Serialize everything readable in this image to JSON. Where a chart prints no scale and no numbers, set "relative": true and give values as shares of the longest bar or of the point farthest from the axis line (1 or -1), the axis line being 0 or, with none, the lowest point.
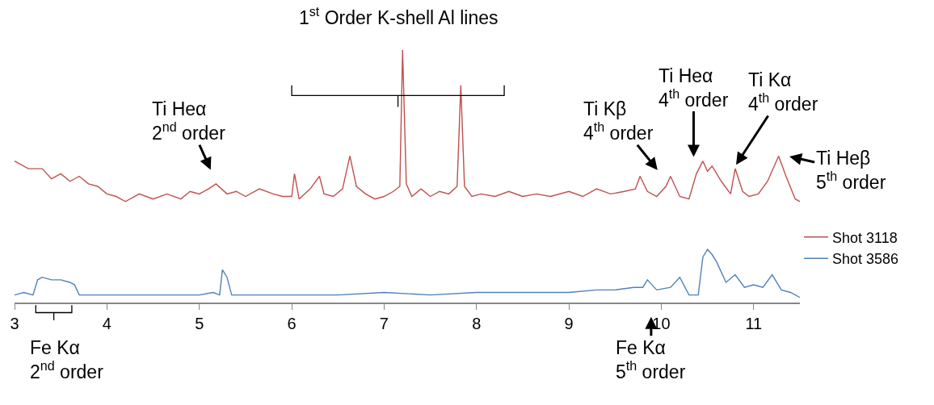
{
  "chart_data": {
    "type": "line",
    "relative": true,
    "legend": "right",
    "grid": false,
    "marker": "none",
    "line_style": "solid",
    "xlim": [
      3,
      11.5
    ],
    "xticks": [
      3,
      4,
      5,
      6,
      7,
      8,
      9,
      10,
      11
    ],
    "series": [
      {
        "name": "Shot 3118",
        "color": "#c0504d",
        "x": [
          3.0,
          3.15,
          3.3,
          3.4,
          3.5,
          3.6,
          3.7,
          3.8,
          3.9,
          4.0,
          4.1,
          4.2,
          4.35,
          4.5,
          4.65,
          4.8,
          4.9,
          5.0,
          5.1,
          5.18,
          5.3,
          5.4,
          5.5,
          5.65,
          5.8,
          5.9,
          6.0,
          6.03,
          6.08,
          6.2,
          6.3,
          6.35,
          6.45,
          6.55,
          6.63,
          6.7,
          6.8,
          6.9,
          7.0,
          7.1,
          7.17,
          7.2,
          7.24,
          7.3,
          7.4,
          7.5,
          7.6,
          7.7,
          7.79,
          7.83,
          7.87,
          7.95,
          8.05,
          8.2,
          8.35,
          8.5,
          8.65,
          8.8,
          9.0,
          9.15,
          9.3,
          9.45,
          9.6,
          9.72,
          9.77,
          9.85,
          9.95,
          10.05,
          10.1,
          10.2,
          10.3,
          10.38,
          10.45,
          10.5,
          10.55,
          10.65,
          10.75,
          10.8,
          10.88,
          10.95,
          11.05,
          11.15,
          11.27,
          11.35,
          11.45,
          11.5
        ],
        "values": [
          0.56,
          0.53,
          0.53,
          0.49,
          0.51,
          0.48,
          0.5,
          0.47,
          0.46,
          0.43,
          0.42,
          0.4,
          0.43,
          0.41,
          0.43,
          0.41,
          0.44,
          0.43,
          0.45,
          0.47,
          0.43,
          0.44,
          0.42,
          0.45,
          0.43,
          0.42,
          0.42,
          0.51,
          0.41,
          0.45,
          0.5,
          0.43,
          0.42,
          0.45,
          0.58,
          0.46,
          0.43,
          0.41,
          0.42,
          0.44,
          0.46,
          1.0,
          0.47,
          0.42,
          0.45,
          0.42,
          0.44,
          0.43,
          0.46,
          0.86,
          0.46,
          0.42,
          0.43,
          0.42,
          0.44,
          0.42,
          0.43,
          0.42,
          0.44,
          0.42,
          0.45,
          0.43,
          0.44,
          0.45,
          0.5,
          0.44,
          0.42,
          0.46,
          0.5,
          0.42,
          0.41,
          0.51,
          0.56,
          0.52,
          0.54,
          0.48,
          0.43,
          0.53,
          0.44,
          0.42,
          0.43,
          0.48,
          0.58,
          0.5,
          0.41,
          0.4
        ]
      },
      {
        "name": "Shot 3586",
        "color": "#4f81bd",
        "x": [
          3.0,
          3.1,
          3.2,
          3.25,
          3.3,
          3.4,
          3.5,
          3.6,
          3.65,
          3.7,
          3.85,
          4.0,
          4.25,
          4.5,
          4.75,
          5.0,
          5.15,
          5.22,
          5.25,
          5.3,
          5.35,
          5.5,
          5.75,
          6.0,
          6.5,
          7.0,
          7.5,
          8.0,
          8.5,
          9.0,
          9.3,
          9.5,
          9.7,
          9.8,
          9.85,
          9.95,
          10.1,
          10.2,
          10.3,
          10.4,
          10.45,
          10.5,
          10.55,
          10.6,
          10.7,
          10.8,
          10.9,
          11.0,
          11.1,
          11.2,
          11.3,
          11.4,
          11.5
        ],
        "values": [
          0.03,
          0.04,
          0.03,
          0.09,
          0.1,
          0.09,
          0.09,
          0.08,
          0.07,
          0.03,
          0.03,
          0.03,
          0.03,
          0.03,
          0.03,
          0.03,
          0.04,
          0.03,
          0.13,
          0.1,
          0.03,
          0.03,
          0.03,
          0.03,
          0.03,
          0.04,
          0.03,
          0.04,
          0.04,
          0.04,
          0.05,
          0.05,
          0.06,
          0.06,
          0.09,
          0.05,
          0.06,
          0.1,
          0.03,
          0.03,
          0.18,
          0.21,
          0.19,
          0.16,
          0.08,
          0.11,
          0.06,
          0.07,
          0.06,
          0.11,
          0.05,
          0.04,
          0.02
        ]
      }
    ],
    "annotations": [
      "1$^{st}$ Order K-shell Al lines",
      "Ti Heα\n2$^{nd}$ order",
      "Ti Kβ\n4$^{th}$ order",
      "Ti Heα\n4$^{th}$ order",
      "Ti Kα\n4$^{th}$ order",
      "Ti Heβ\n5$^{th}$ order",
      "Fe Kα\n5$^{th}$ order",
      "Fe Kα\n2$^{nd}$ order"
    ]
  }
}
